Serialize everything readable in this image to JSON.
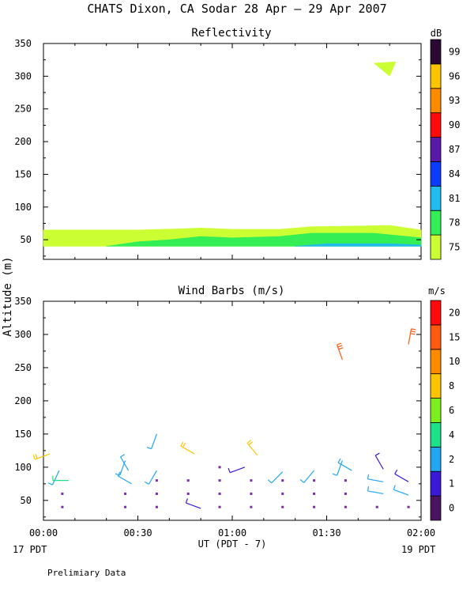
{
  "header": {
    "title": "CHATS Dixon, CA  Sodar  28 Apr – 29 Apr 2007",
    "y_axis_label": "Altitude (m)",
    "x_axis_label": "UT  (PDT - 7)",
    "left_date": "17 PDT",
    "right_date": "19 PDT",
    "footer_note": "Prelimiary Data"
  },
  "colors": {
    "refl": [
      "#ccff33",
      "#33ee55",
      "#22bbee",
      "#0a3cff",
      "#5a1aa8",
      "#ff0a0a",
      "#ff8a00",
      "#ffc400",
      "#2a0a33"
    ],
    "wind": [
      "#4a1460",
      "#3a1ad8",
      "#21a6f0",
      "#1ce08a",
      "#7cf01e",
      "#ffc400",
      "#ff8a00",
      "#ff5a10",
      "#ff0a0a"
    ]
  },
  "chart_data": [
    {
      "type": "heatmap",
      "title": "Reflectivity",
      "colorbar_unit": "dB",
      "colorbar_labels": [
        "75",
        "78",
        "81",
        "84",
        "87",
        "90",
        "93",
        "96",
        "99"
      ],
      "x_ticks": [
        "00:00",
        "00:30",
        "01:00",
        "01:30",
        "02:00"
      ],
      "y_ticks": [
        "50",
        "100",
        "150",
        "200",
        "250",
        "300",
        "350"
      ],
      "xlim": [
        0,
        120
      ],
      "ylim": [
        20,
        350
      ],
      "grid": false,
      "layers": [
        {
          "level": "75",
          "bottom": [
            [
              0,
              40
            ],
            [
              120,
              40
            ]
          ],
          "top": [
            [
              0,
              65
            ],
            [
              30,
              65
            ],
            [
              45,
              67
            ],
            [
              50,
              68
            ],
            [
              60,
              66
            ],
            [
              75,
              66
            ],
            [
              85,
              70
            ],
            [
              100,
              71
            ],
            [
              110,
              72
            ],
            [
              120,
              65
            ]
          ]
        },
        {
          "level": "78",
          "bottom": [
            [
              20,
              40
            ],
            [
              120,
              40
            ]
          ],
          "top": [
            [
              20,
              40
            ],
            [
              30,
              47
            ],
            [
              40,
              50
            ],
            [
              50,
              55
            ],
            [
              60,
              53
            ],
            [
              75,
              55
            ],
            [
              85,
              60
            ],
            [
              105,
              60
            ],
            [
              120,
              53
            ]
          ]
        },
        {
          "level": "81",
          "bottom": [
            [
              80,
              40
            ],
            [
              120,
              40
            ]
          ],
          "top": [
            [
              80,
              40
            ],
            [
              90,
              44
            ],
            [
              110,
              44
            ],
            [
              120,
              42
            ]
          ]
        },
        {
          "level": "75",
          "bottom": [
            [
              105,
              320
            ],
            [
              110,
              300
            ]
          ],
          "top": [
            [
              105,
              320
            ],
            [
              112,
              322
            ]
          ]
        }
      ]
    },
    {
      "type": "scatter",
      "title": "Wind Barbs (m/s)",
      "colorbar_unit": "m/s",
      "colorbar_labels": [
        "0",
        "1",
        "2",
        "4",
        "6",
        "8",
        "10",
        "15",
        "20"
      ],
      "x_ticks": [
        "00:00",
        "00:30",
        "01:00",
        "01:30",
        "02:00"
      ],
      "y_ticks": [
        "50",
        "100",
        "150",
        "200",
        "250",
        "300",
        "350"
      ],
      "xlim": [
        0,
        120
      ],
      "ylim": [
        20,
        350
      ],
      "grid": false,
      "barbs": [
        {
          "t": 2,
          "alt": 120,
          "dir": 250,
          "spd": 8
        },
        {
          "t": 5,
          "alt": 95,
          "dir": 205,
          "spd": 2
        },
        {
          "t": 8,
          "alt": 80,
          "dir": 270,
          "spd": 5
        },
        {
          "t": 26,
          "alt": 110,
          "dir": 200,
          "spd": 2
        },
        {
          "t": 27,
          "alt": 95,
          "dir": 330,
          "spd": 2
        },
        {
          "t": 28,
          "alt": 75,
          "dir": 300,
          "spd": 2
        },
        {
          "t": 36,
          "alt": 150,
          "dir": 200,
          "spd": 3
        },
        {
          "t": 36,
          "alt": 95,
          "dir": 210,
          "spd": 2
        },
        {
          "t": 48,
          "alt": 120,
          "dir": 300,
          "spd": 8
        },
        {
          "t": 50,
          "alt": 38,
          "dir": 290,
          "spd": 1
        },
        {
          "t": 64,
          "alt": 100,
          "dir": 250,
          "spd": 1
        },
        {
          "t": 68,
          "alt": 118,
          "dir": 320,
          "spd": 8
        },
        {
          "t": 76,
          "alt": 93,
          "dir": 225,
          "spd": 2
        },
        {
          "t": 86,
          "alt": 95,
          "dir": 220,
          "spd": 2
        },
        {
          "t": 95,
          "alt": 262,
          "dir": 340,
          "spd": 15
        },
        {
          "t": 95,
          "alt": 110,
          "dir": 200,
          "spd": 2
        },
        {
          "t": 98,
          "alt": 95,
          "dir": 300,
          "spd": 2
        },
        {
          "t": 108,
          "alt": 97,
          "dir": 330,
          "spd": 1
        },
        {
          "t": 108,
          "alt": 78,
          "dir": 280,
          "spd": 2
        },
        {
          "t": 108,
          "alt": 60,
          "dir": 280,
          "spd": 2
        },
        {
          "t": 116,
          "alt": 285,
          "dir": 10,
          "spd": 15
        },
        {
          "t": 116,
          "alt": 78,
          "dir": 300,
          "spd": 1
        },
        {
          "t": 116,
          "alt": 58,
          "dir": 290,
          "spd": 2
        }
      ],
      "calm_points": [
        {
          "t": 6,
          "alt": 60
        },
        {
          "t": 6,
          "alt": 40
        },
        {
          "t": 26,
          "alt": 60
        },
        {
          "t": 26,
          "alt": 40
        },
        {
          "t": 36,
          "alt": 80
        },
        {
          "t": 36,
          "alt": 60
        },
        {
          "t": 36,
          "alt": 40
        },
        {
          "t": 46,
          "alt": 80
        },
        {
          "t": 46,
          "alt": 60
        },
        {
          "t": 56,
          "alt": 100
        },
        {
          "t": 56,
          "alt": 80
        },
        {
          "t": 56,
          "alt": 60
        },
        {
          "t": 56,
          "alt": 40
        },
        {
          "t": 66,
          "alt": 80
        },
        {
          "t": 66,
          "alt": 60
        },
        {
          "t": 66,
          "alt": 40
        },
        {
          "t": 76,
          "alt": 80
        },
        {
          "t": 76,
          "alt": 60
        },
        {
          "t": 76,
          "alt": 40
        },
        {
          "t": 86,
          "alt": 80
        },
        {
          "t": 86,
          "alt": 60
        },
        {
          "t": 86,
          "alt": 40
        },
        {
          "t": 96,
          "alt": 80
        },
        {
          "t": 96,
          "alt": 60
        },
        {
          "t": 96,
          "alt": 40
        },
        {
          "t": 106,
          "alt": 40
        },
        {
          "t": 116,
          "alt": 40
        }
      ]
    }
  ]
}
